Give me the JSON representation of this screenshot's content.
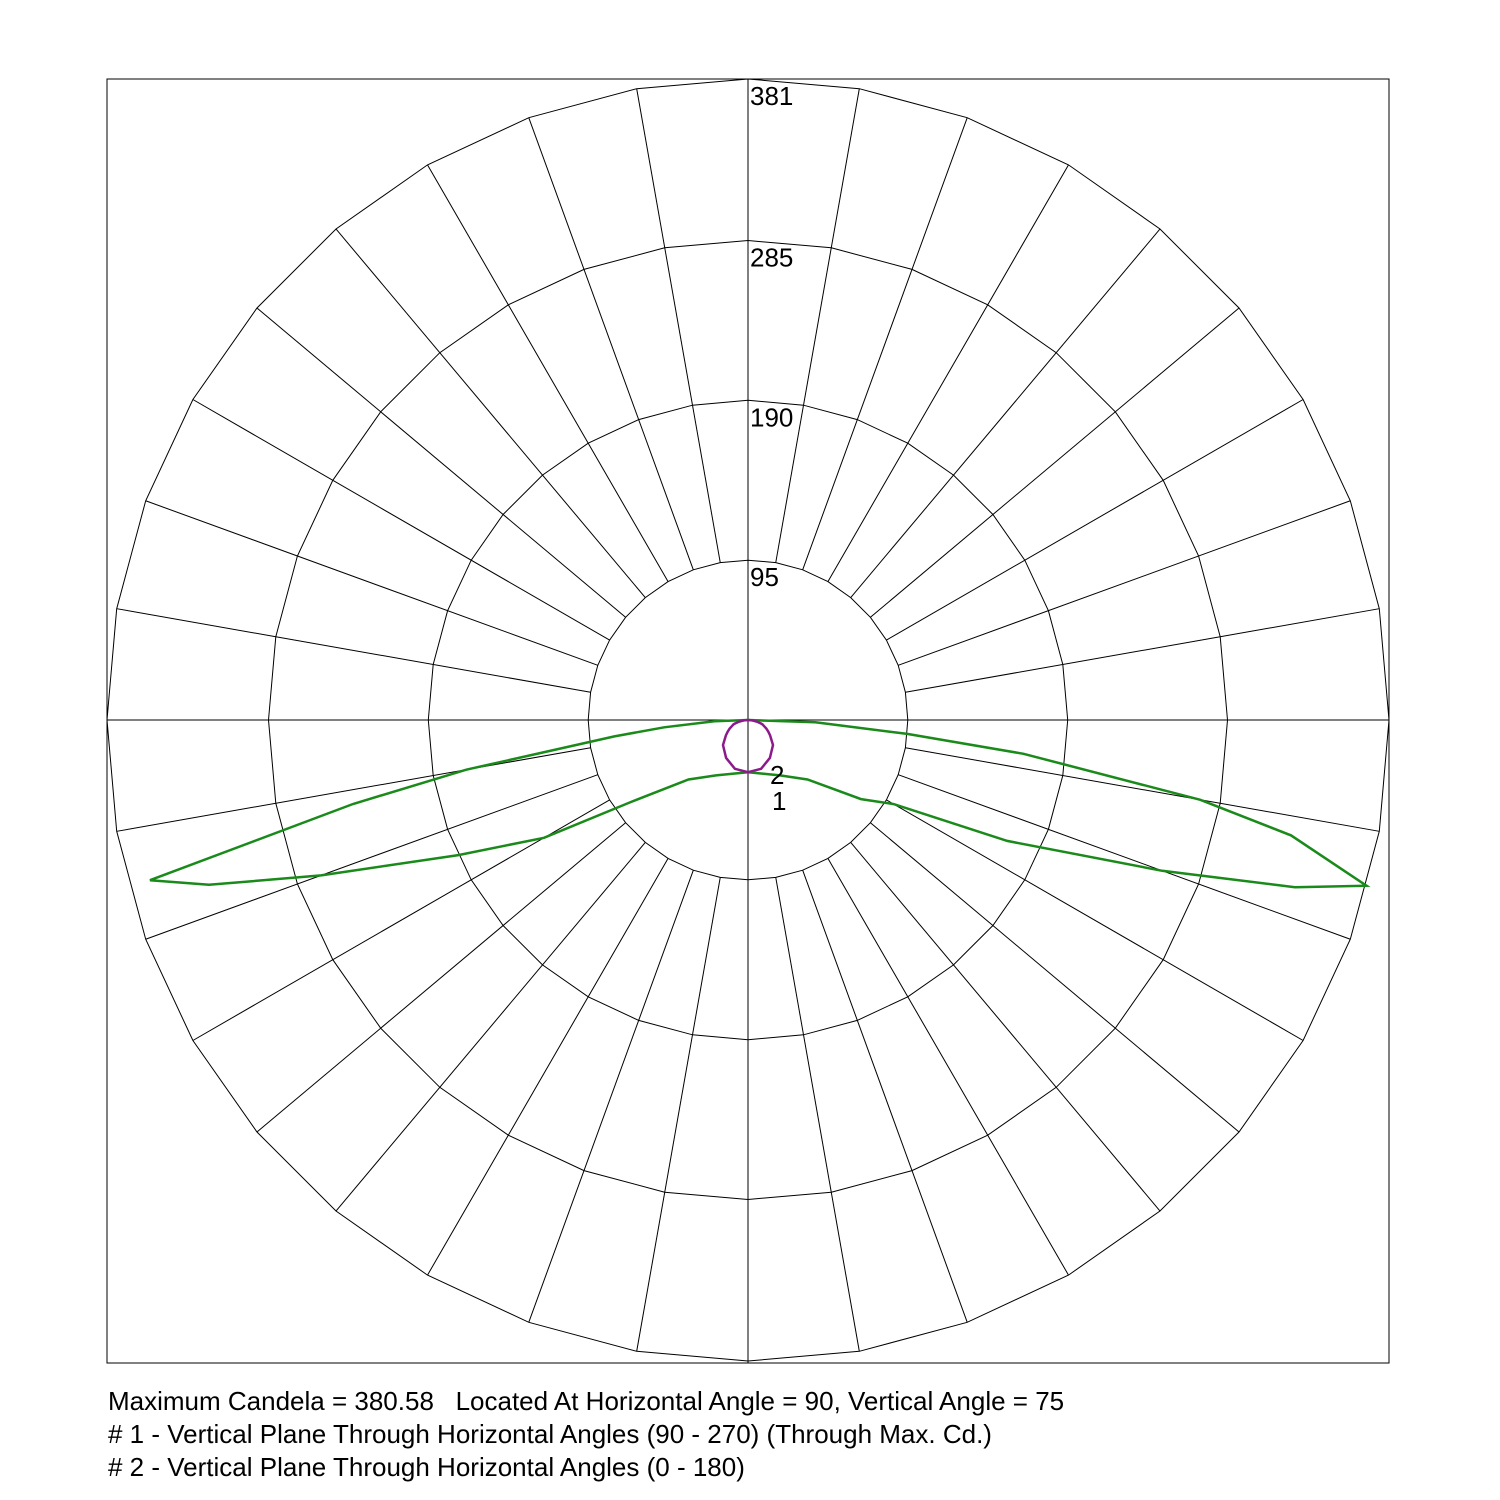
{
  "chart_data": {
    "type": "polar",
    "rlim": [
      0,
      381
    ],
    "rticks": [
      95,
      190,
      285,
      381
    ],
    "angles": [
      0,
      15,
      30,
      45,
      55,
      60,
      65,
      70,
      73,
      75,
      78,
      80,
      83,
      85,
      88,
      90
    ],
    "series": [
      {
        "name": "1",
        "color": "#1a8a1a",
        "values": [
          31,
          33,
          38,
          50,
          82,
          100,
          170,
          262,
          340,
          380.58,
          330,
          273,
          165,
          95,
          40,
          0
        ],
        "values_left": [
          31,
          33,
          38,
          50,
          85,
          140,
          190,
          270,
          335,
          368,
          240,
          170,
          80,
          50,
          20,
          0
        ]
      },
      {
        "name": "2",
        "color": "#8b1a8b",
        "values": [
          31,
          30,
          26,
          21,
          16,
          14,
          12,
          10,
          9,
          8,
          6,
          5,
          3,
          2,
          1,
          0
        ],
        "values_left": [
          31,
          30,
          26,
          21,
          16,
          14,
          12,
          10,
          9,
          8,
          6,
          5,
          3,
          2,
          1,
          0
        ]
      }
    ],
    "footer": [
      "Maximum Candela = 380.58   Located At Horizontal Angle = 90, Vertical Angle = 75",
      "# 1 - Vertical Plane Through Horizontal Angles (90 - 270) (Through Max. Cd.)",
      "# 2 - Vertical Plane Through Horizontal Angles (0 - 180)"
    ]
  }
}
